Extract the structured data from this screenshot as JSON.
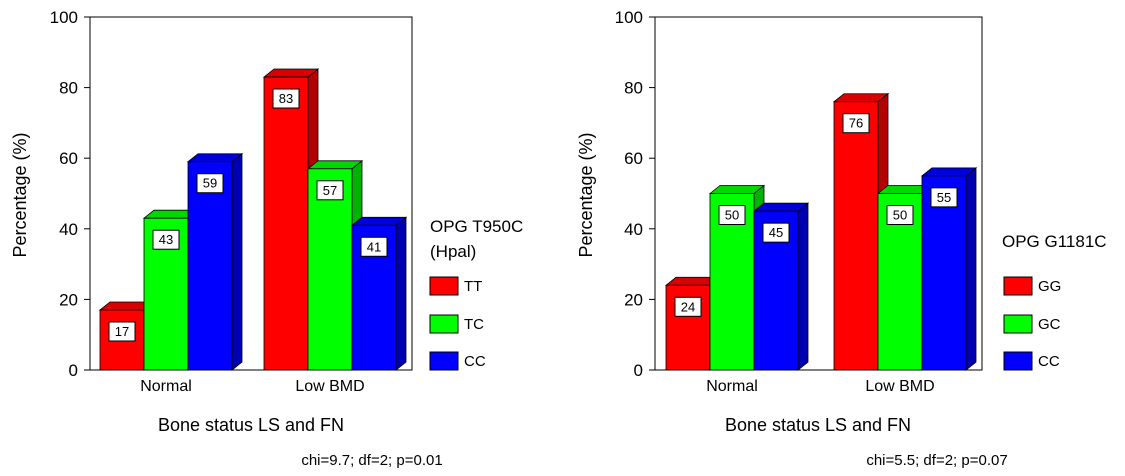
{
  "chart_data": [
    {
      "type": "bar",
      "categories": [
        "Normal",
        "Low BMD"
      ],
      "series": [
        {
          "name": "TT",
          "color": "#ff0000",
          "values": [
            17,
            83
          ]
        },
        {
          "name": "TC",
          "color": "#00ff00",
          "values": [
            43,
            57
          ]
        },
        {
          "name": "CC",
          "color": "#0000ff",
          "values": [
            59,
            41
          ]
        }
      ],
      "xlabel": "Bone status LS and FN",
      "ylabel": "Percentage  (%)",
      "ylim": [
        0,
        100
      ],
      "yticks": [
        0,
        20,
        40,
        60,
        80,
        100
      ],
      "legend_title": [
        "OPG T950C",
        "(Hpal)"
      ],
      "legend_position": "right",
      "annotation": "chi=9.7; df=2; p=0.01",
      "grid": false,
      "style": "3d"
    },
    {
      "type": "bar",
      "categories": [
        "Normal",
        "Low BMD"
      ],
      "series": [
        {
          "name": "GG",
          "color": "#ff0000",
          "values": [
            24,
            76
          ]
        },
        {
          "name": "GC",
          "color": "#00ff00",
          "values": [
            50,
            50
          ]
        },
        {
          "name": "CC",
          "color": "#0000ff",
          "values": [
            45,
            55
          ]
        }
      ],
      "xlabel": "Bone status LS and FN",
      "ylabel": "Percentage (%)",
      "ylim": [
        0,
        100
      ],
      "yticks": [
        0,
        20,
        40,
        60,
        80,
        100
      ],
      "legend_title": [
        "OPG G1181C"
      ],
      "legend_position": "right",
      "annotation": "chi=5.5; df=2; p=0.07",
      "grid": false,
      "style": "3d"
    }
  ]
}
